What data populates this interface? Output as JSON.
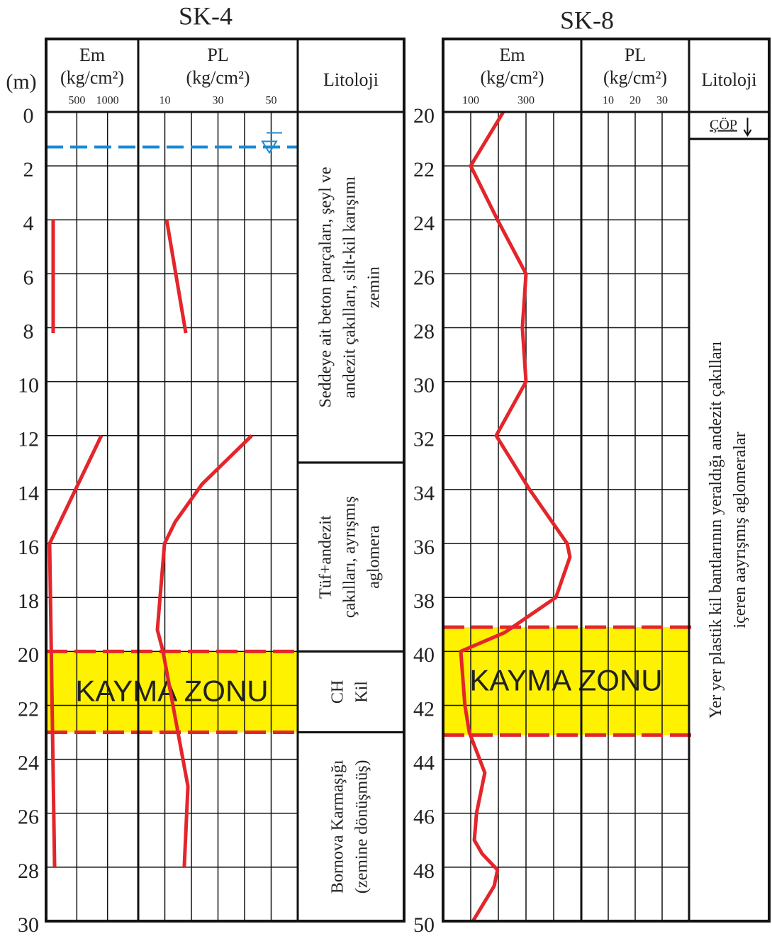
{
  "panels": [
    {
      "title": "SK-4",
      "depth_unit": "(m)",
      "depth_lim": [
        0,
        30
      ],
      "depth_ticks": [
        0,
        2,
        4,
        6,
        8,
        10,
        12,
        14,
        16,
        18,
        20,
        22,
        24,
        26,
        28,
        30
      ],
      "em": {
        "label": "Em",
        "unit": "(kg/cm²)",
        "lim": [
          0,
          1500
        ],
        "ticks": [
          500,
          1000
        ],
        "grid": [
          500,
          1000
        ],
        "depths": [
          4,
          8.2,
          null,
          12,
          16,
          28
        ],
        "values": [
          115,
          115,
          null,
          900,
          58,
          138
        ]
      },
      "pl": {
        "label": "PL",
        "unit": "(kg/cm²)",
        "lim": [
          0,
          60
        ],
        "ticks": [
          10,
          30,
          50
        ],
        "grid": [
          10,
          20,
          30,
          40,
          50
        ],
        "depths": [
          4,
          8.2,
          null,
          12,
          13.8,
          15.2,
          16,
          19.2,
          20,
          25,
          28
        ],
        "values": [
          10.7,
          17.9,
          null,
          42.7,
          24,
          13.9,
          9.9,
          7.2,
          9.3,
          18.7,
          17.3
        ]
      },
      "lithology_label": "Litoloji",
      "water_table": 1.3,
      "zone": {
        "label": "KAYMA ZONU",
        "top": 20,
        "bottom": 23
      },
      "layers": [
        {
          "top": 0,
          "bottom": 13,
          "lines": [
            "Seddeye ait beton parçaları, şeyl ve",
            "andezit çakılları, silt-kil karışımı",
            "zemin"
          ]
        },
        {
          "top": 13,
          "bottom": 20,
          "lines": [
            "Tüf+andezit",
            "çakılları, ayrışmış",
            "aglomera"
          ]
        },
        {
          "top": 20,
          "bottom": 23,
          "lines": [
            "CH",
            "Kil"
          ]
        },
        {
          "top": 23,
          "bottom": 30,
          "lines": [
            "Bornova Karmaşığı",
            "(zemine dönüşmüş)"
          ]
        }
      ]
    },
    {
      "title": "SK-8",
      "depth_lim": [
        20,
        50
      ],
      "depth_ticks": [
        20,
        22,
        24,
        26,
        28,
        30,
        32,
        34,
        36,
        38,
        40,
        42,
        44,
        46,
        48,
        50
      ],
      "em": {
        "label": "Em",
        "unit": "(kg/cm²)",
        "lim": [
          0,
          500
        ],
        "ticks": [
          100,
          300
        ],
        "grid": [
          100,
          200,
          300,
          400
        ],
        "depths": [
          20,
          22,
          24,
          26,
          28,
          30,
          32,
          34,
          36,
          36.5,
          38,
          39.3,
          40,
          42,
          43,
          44.5,
          46,
          47,
          47.5,
          48.1,
          48.7,
          50
        ],
        "values": [
          218,
          100,
          197,
          300,
          287,
          300,
          192,
          313,
          449,
          459,
          408,
          223,
          64,
          79,
          95,
          151,
          121,
          113,
          141,
          197,
          185,
          108
        ]
      },
      "pl": {
        "label": "PL",
        "unit": "(kg/cm²)",
        "lim": [
          0,
          40
        ],
        "ticks": [
          10,
          20,
          30
        ],
        "grid": [
          10,
          20,
          30
        ]
      },
      "lithology_label": "Litoloji",
      "zone": {
        "label": "KAYMA ZONU",
        "top": 39.1,
        "bottom": 43.1
      },
      "layers": [
        {
          "top": 20,
          "bottom": 21,
          "lines": [
            "ÇÖP"
          ],
          "horizontal": true
        },
        {
          "top": 21,
          "bottom": 50,
          "lines": [
            "Yer yer plastik kil bantlarının yeraldığı andezit çakılları",
            "içeren aayrışmış aglomeralar"
          ]
        }
      ]
    }
  ]
}
